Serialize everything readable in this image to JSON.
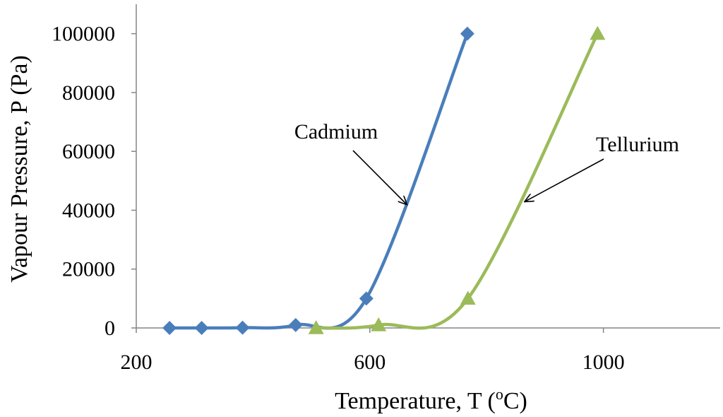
{
  "chart_data": {
    "type": "scatter",
    "xlabel": "Temperature, T (",
    "xlabel_sup": "o",
    "xlabel_end": "C)",
    "ylabel": "Vapour Pressure, P (Pa)",
    "xlim": [
      200,
      1200
    ],
    "ylim": [
      0,
      110000
    ],
    "xticks": [
      200,
      600,
      1000
    ],
    "yticks": [
      0,
      20000,
      40000,
      60000,
      80000,
      100000
    ],
    "grid": false,
    "legend": "none",
    "series": [
      {
        "name": "Cadmium",
        "marker": "diamond",
        "color": "#4A7EBB",
        "x": [
          257,
          312,
          382,
          473,
          594,
          767
        ],
        "y": [
          1,
          10,
          100,
          1000,
          10000,
          100000
        ]
      },
      {
        "name": "Tellurium",
        "marker": "triangle",
        "color": "#9BBB59",
        "x": [
          508,
          615,
          768,
          990
        ],
        "y": [
          10,
          1000,
          10000,
          100000
        ]
      }
    ],
    "annotations": [
      {
        "text": "Cadmium",
        "series": 0,
        "arrow_to": [
          663,
          42000
        ]
      },
      {
        "text": "Tellurium",
        "series": 1,
        "arrow_to": [
          866,
          43000
        ]
      }
    ]
  }
}
